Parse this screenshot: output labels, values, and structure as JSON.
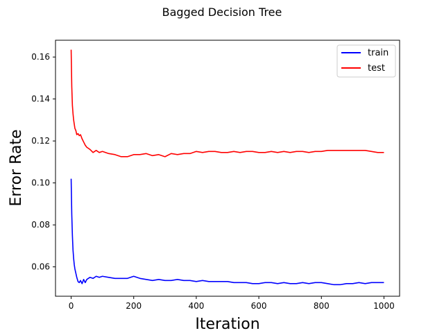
{
  "chart_data": {
    "type": "line",
    "title": "Bagged Decision Tree",
    "xlabel": "Iteration",
    "ylabel": "Error Rate",
    "xlim": [
      -50,
      1050
    ],
    "ylim": [
      0.046,
      0.168
    ],
    "xticks": [
      0,
      200,
      400,
      600,
      800,
      1000
    ],
    "yticks": [
      0.06,
      0.08,
      0.1,
      0.12,
      0.14,
      0.16
    ],
    "xtick_labels": [
      "0",
      "200",
      "400",
      "600",
      "800",
      "1000"
    ],
    "ytick_labels": [
      "0.06",
      "0.08",
      "0.10",
      "0.12",
      "0.14",
      "0.16"
    ],
    "grid": false,
    "legend_position": "top-right",
    "series": [
      {
        "name": "train",
        "color": "#0000ff",
        "x": [
          0,
          2,
          4,
          6,
          8,
          10,
          12,
          15,
          18,
          22,
          26,
          30,
          35,
          40,
          45,
          50,
          60,
          70,
          80,
          90,
          100,
          120,
          140,
          160,
          180,
          200,
          220,
          240,
          260,
          280,
          300,
          320,
          340,
          360,
          380,
          400,
          420,
          440,
          460,
          480,
          500,
          520,
          540,
          560,
          580,
          600,
          620,
          640,
          660,
          680,
          700,
          720,
          740,
          760,
          780,
          800,
          820,
          840,
          860,
          880,
          900,
          920,
          940,
          960,
          980,
          1000
        ],
        "y": [
          0.102,
          0.085,
          0.075,
          0.068,
          0.064,
          0.061,
          0.059,
          0.057,
          0.055,
          0.053,
          0.0525,
          0.0535,
          0.052,
          0.054,
          0.0525,
          0.054,
          0.055,
          0.0545,
          0.0555,
          0.055,
          0.0555,
          0.055,
          0.0545,
          0.0545,
          0.0545,
          0.0555,
          0.0545,
          0.054,
          0.0535,
          0.054,
          0.0535,
          0.0535,
          0.054,
          0.0535,
          0.0535,
          0.053,
          0.0535,
          0.053,
          0.053,
          0.053,
          0.053,
          0.0525,
          0.0525,
          0.0525,
          0.052,
          0.052,
          0.0525,
          0.0525,
          0.052,
          0.0525,
          0.052,
          0.052,
          0.0525,
          0.052,
          0.0525,
          0.0525,
          0.052,
          0.0515,
          0.0515,
          0.052,
          0.052,
          0.0525,
          0.052,
          0.0525,
          0.0525,
          0.0525
        ]
      },
      {
        "name": "test",
        "color": "#ff0000",
        "x": [
          0,
          2,
          4,
          6,
          8,
          10,
          12,
          15,
          18,
          22,
          26,
          30,
          35,
          40,
          45,
          50,
          60,
          70,
          80,
          90,
          100,
          120,
          140,
          160,
          180,
          200,
          220,
          240,
          260,
          280,
          300,
          320,
          340,
          360,
          380,
          400,
          420,
          440,
          460,
          480,
          500,
          520,
          540,
          560,
          580,
          600,
          620,
          640,
          660,
          680,
          700,
          720,
          740,
          760,
          780,
          800,
          820,
          840,
          860,
          880,
          900,
          920,
          940,
          960,
          980,
          1000
        ],
        "y": [
          0.1635,
          0.146,
          0.137,
          0.133,
          0.13,
          0.128,
          0.126,
          0.125,
          0.123,
          0.1235,
          0.1225,
          0.123,
          0.121,
          0.1195,
          0.118,
          0.117,
          0.116,
          0.1145,
          0.1155,
          0.1145,
          0.115,
          0.114,
          0.1135,
          0.1125,
          0.1125,
          0.1135,
          0.1135,
          0.114,
          0.113,
          0.1135,
          0.1125,
          0.114,
          0.1135,
          0.114,
          0.114,
          0.115,
          0.1145,
          0.115,
          0.115,
          0.1145,
          0.1145,
          0.115,
          0.1145,
          0.115,
          0.115,
          0.1145,
          0.1145,
          0.115,
          0.1145,
          0.115,
          0.1145,
          0.115,
          0.115,
          0.1145,
          0.115,
          0.115,
          0.1155,
          0.1155,
          0.1155,
          0.1155,
          0.1155,
          0.1155,
          0.1155,
          0.115,
          0.1145,
          0.1145
        ]
      }
    ]
  }
}
